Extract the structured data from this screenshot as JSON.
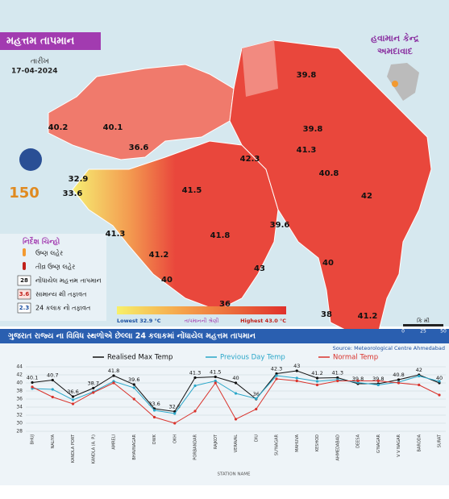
{
  "header": {
    "title": "મહત્તમ તાપમાન",
    "date_label": "તારીખ",
    "date": "17-04-2024",
    "office_line1": "હવામાન કેન્દ્ર",
    "office_line2": "અમદાવાદ",
    "logo_text": "150"
  },
  "map": {
    "labels": [
      "40.2",
      "40.1",
      "36.6",
      "32.9",
      "33.6",
      "41.5",
      "42.3",
      "39.8",
      "39.8",
      "41.3",
      "40.8",
      "42",
      "41.8",
      "39.6",
      "41.3",
      "41.2",
      "40",
      "43",
      "40",
      "36",
      "38",
      "41.2"
    ],
    "scale_title": "કિ મી",
    "scale_ticks": [
      "0",
      "25",
      "50"
    ],
    "range_lowest": "Lowest 32.9 °C",
    "range_highest": "Highest 43.0 °C",
    "range_title": "તાપમાનની શ્રેણી"
  },
  "legend": {
    "title": "નિર્દેશ ચિન્હો",
    "items": [
      {
        "symbol": "",
        "text": "ઉષ્ણ લહેર"
      },
      {
        "symbol": "",
        "text": "તીવ્ર ઉષ્ણ લહેર"
      },
      {
        "symbol": "28",
        "text": "નોંધાયેલ મહત્તમ તાપમાન"
      },
      {
        "symbol": "3.6",
        "text": "સામાન્ય થી તફાવત"
      },
      {
        "symbol": "2.3",
        "text": "24 કલાક નો તફાવત"
      }
    ]
  },
  "banner": "ગુજરાત રાજ્ય ના વિવિધ સ્થળોએ છેલ્લા 24 કલાકમાં નોંધાયેલ મહત્તમ તાપમાન",
  "source": "Source: Meteorological Centre Ahmedabad",
  "chart_data": {
    "type": "line",
    "x_label": "STATION NAME",
    "categories": [
      "BHUJ",
      "NALIYA",
      "KANDLA PORT",
      "KANDLA (A. P.)",
      "AMRELI",
      "BHAVNAGAR",
      "DWK",
      "OKH",
      "PORBANDAR",
      "RAJKOT",
      "VERAVAL",
      "DIU",
      "SU'NAGAR",
      "MAHUVA",
      "KESHOD",
      "AHMEDABAD",
      "DEESA",
      "G'NAGAR",
      "V V NAGAR",
      "BARODA",
      "SURAT"
    ],
    "series": [
      {
        "name": "Realised Max Temp",
        "color": "#111111",
        "values": [
          40.1,
          40.7,
          36.6,
          38.7,
          41.8,
          39.6,
          33.6,
          32.9,
          41.3,
          41.5,
          40,
          36,
          42.3,
          43,
          41.2,
          41.3,
          39.8,
          39.8,
          40.8,
          42,
          40
        ]
      },
      {
        "name": "Previous Day Temp",
        "color": "#2aa7c9",
        "values": [
          38.6,
          38.4,
          35.8,
          37.8,
          40.4,
          38.8,
          33.2,
          32.4,
          39.3,
          40.5,
          37.4,
          36.1,
          41.8,
          41.2,
          40.4,
          40.8,
          40.1,
          39.5,
          40.2,
          41.7,
          40.4
        ]
      },
      {
        "name": "Normal Temp",
        "color": "#d9322b",
        "values": [
          39,
          36.5,
          34.8,
          37.6,
          40,
          36,
          31.5,
          30,
          33,
          40,
          31,
          33.5,
          41,
          40.5,
          39.5,
          40.5,
          40.5,
          40.5,
          40,
          39.5,
          37
        ]
      }
    ],
    "ylim": [
      28,
      44
    ],
    "yticks": [
      28,
      30,
      32,
      34,
      36,
      38,
      40,
      42,
      44
    ],
    "grid": true
  }
}
